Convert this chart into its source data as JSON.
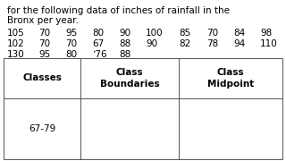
{
  "text_top_line1": "for the following data of inches of rainfall in the",
  "text_top_line2": "Bronx per year.",
  "data_rows": [
    [
      "105",
      "70",
      "95",
      "80",
      "90",
      "100",
      "85",
      "70",
      "84",
      "98"
    ],
    [
      "102",
      "70",
      "70",
      "67",
      "88",
      "90",
      "82",
      "78",
      "94",
      "110"
    ],
    [
      "130",
      "95",
      "80",
      "ʼ76",
      "88"
    ]
  ],
  "table_headers": [
    "Classes",
    "Class\nBoundaries",
    "Class\nMidpoint"
  ],
  "table_row1": [
    "67-79",
    "",
    ""
  ],
  "bg_color": "#ffffff",
  "text_color": "#000000",
  "table_line_color": "#555555",
  "font_size_text": 7.5,
  "font_size_table": 7.5
}
